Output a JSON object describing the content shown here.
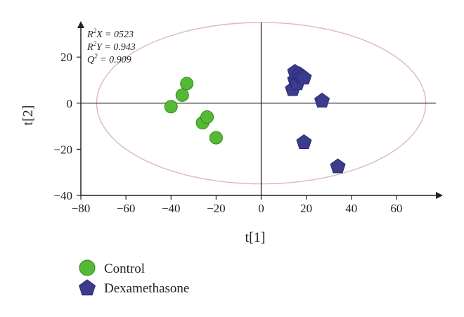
{
  "chart_data": {
    "type": "scatter",
    "xlabel": "t[1]",
    "ylabel": "t[2]",
    "xlim": [
      -80,
      80
    ],
    "ylim": [
      -40,
      35
    ],
    "x_ticks": [
      -80,
      -60,
      -40,
      -20,
      0,
      20,
      40,
      60
    ],
    "y_ticks": [
      -40,
      -20,
      0,
      20
    ],
    "grid": false,
    "legend_position": "bottom-left",
    "annotations": {
      "r2x": {
        "base": "R",
        "sup": "2",
        "rest": "X = 0523"
      },
      "r2y": {
        "base": "R",
        "sup": "2",
        "rest": "Y = 0.943"
      },
      "q2": {
        "base": "Q",
        "sup": "2",
        "rest": " = 0.909"
      }
    },
    "confidence_ellipse": {
      "cx": 0,
      "cy": 0,
      "rx": 73,
      "ry": 35,
      "color": "#dcb8bf"
    },
    "series": [
      {
        "name": "Control",
        "marker": "circle",
        "color": "#55b935",
        "stroke": "#2f8a1c",
        "points": [
          [
            -40,
            -1.5
          ],
          [
            -35,
            3.5
          ],
          [
            -33,
            8.5
          ],
          [
            -26,
            -8.5
          ],
          [
            -24,
            -6
          ],
          [
            -20,
            -15
          ]
        ]
      },
      {
        "name": "Dexamethasone",
        "marker": "pentagon",
        "color": "#3c3b8e",
        "stroke": "#282770",
        "points": [
          [
            14,
            6
          ],
          [
            15,
            10
          ],
          [
            15,
            13.5
          ],
          [
            16,
            8.5
          ],
          [
            17,
            12.5
          ],
          [
            18,
            11.5
          ],
          [
            19,
            11
          ],
          [
            27,
            1
          ],
          [
            19,
            -17
          ],
          [
            34,
            -27.5
          ]
        ]
      }
    ]
  }
}
